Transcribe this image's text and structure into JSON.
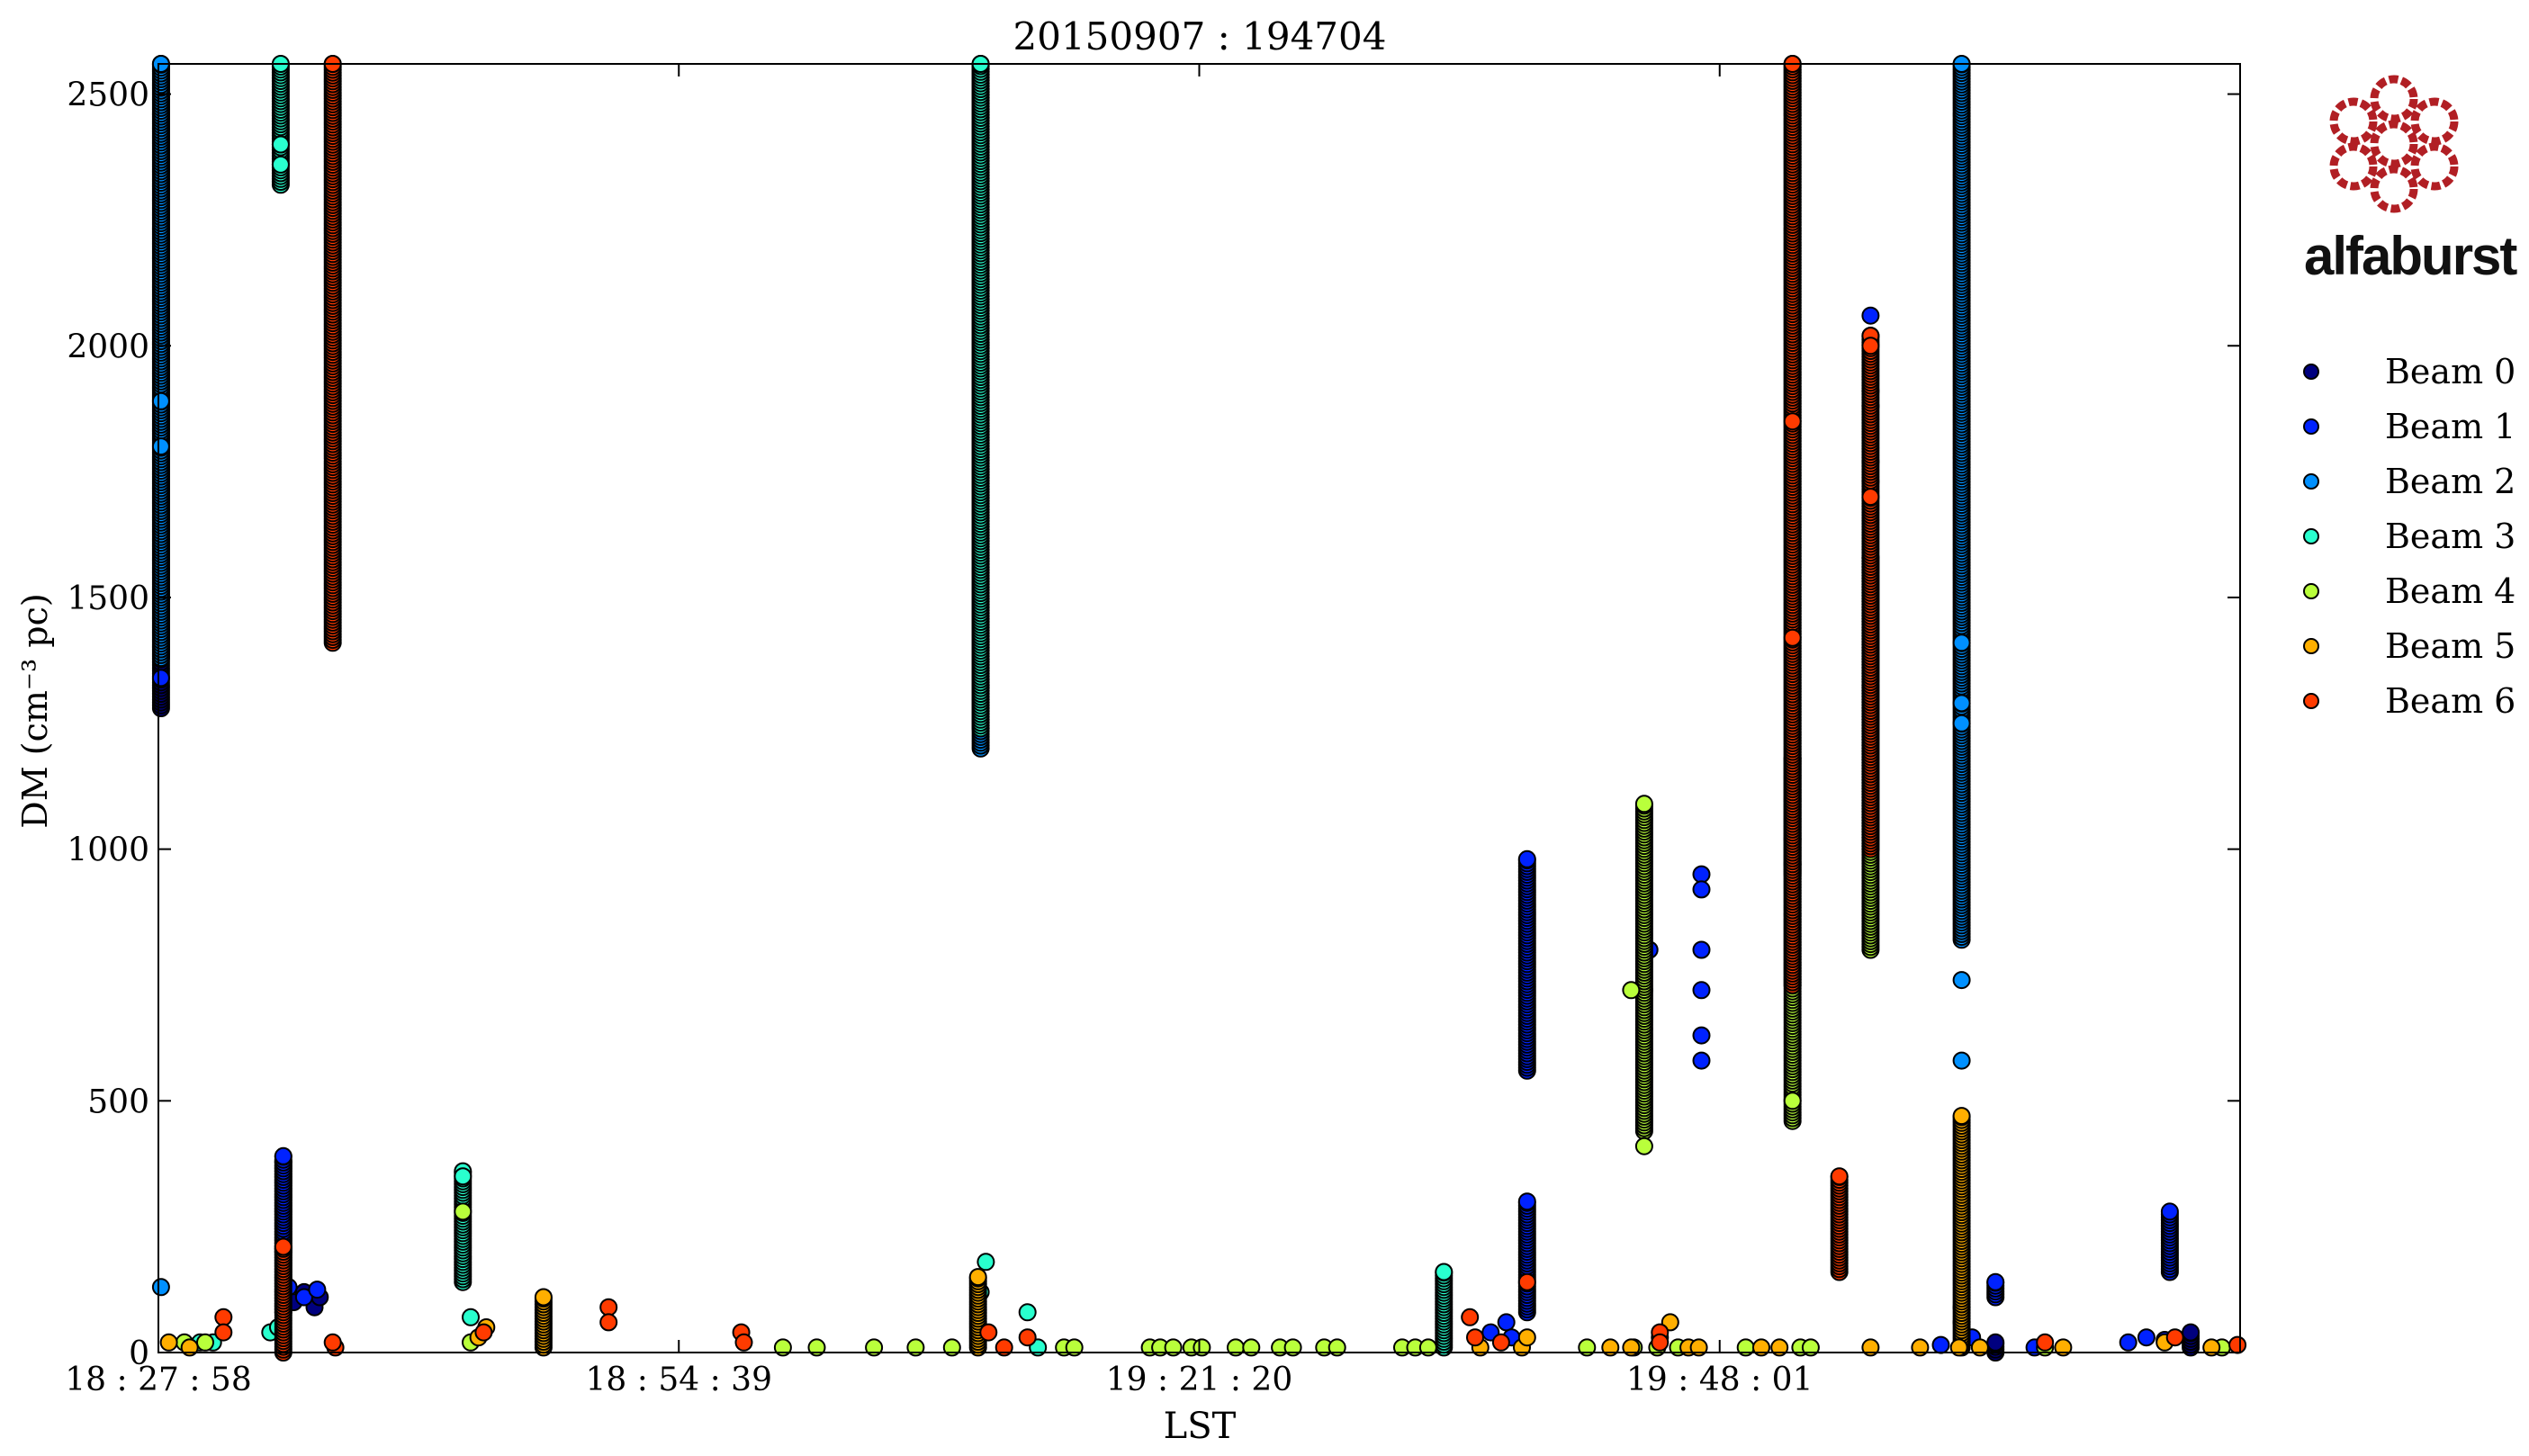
{
  "chart_data": {
    "type": "scatter",
    "title": "20150907 : 194704",
    "xlabel": "LST",
    "ylabel": "DM (cm⁻³ pc)",
    "xlim": [
      0,
      80
    ],
    "ylim": [
      0,
      2560
    ],
    "x_ticks": [
      {
        "value": 0,
        "label": "18 : 27 : 58"
      },
      {
        "value": 20,
        "label": "18 : 54 : 39"
      },
      {
        "value": 40,
        "label": "19 : 21 : 20"
      },
      {
        "value": 60,
        "label": "19 : 48 : 01"
      }
    ],
    "y_ticks": [
      0,
      500,
      1000,
      1500,
      2000,
      2500
    ],
    "grid": false,
    "legend_placement": "right",
    "series": [
      {
        "name": "Beam 0",
        "color": "#00007f",
        "columns": [
          [
            0.1,
            1280,
            2560
          ],
          [
            4.8,
            80,
            380
          ],
          [
            70.6,
            0,
            20
          ],
          [
            78.1,
            10,
            40
          ]
        ],
        "points": [
          [
            5.2,
            100
          ],
          [
            5.6,
            120
          ],
          [
            6.0,
            90
          ],
          [
            6.2,
            110
          ]
        ]
      },
      {
        "name": "Beam 1",
        "color": "#0022ff",
        "columns": [
          [
            4.8,
            200,
            390
          ],
          [
            52.6,
            560,
            980
          ],
          [
            52.6,
            80,
            300
          ],
          [
            70.6,
            110,
            140
          ],
          [
            77.3,
            160,
            280
          ],
          [
            62.8,
            950,
            1180
          ]
        ],
        "points": [
          [
            0.1,
            1340
          ],
          [
            5.0,
            130
          ],
          [
            5.6,
            110
          ],
          [
            6.1,
            125
          ],
          [
            51.8,
            60
          ],
          [
            52.0,
            30
          ],
          [
            57.1,
            720
          ],
          [
            57.3,
            800
          ],
          [
            59.3,
            580
          ],
          [
            59.3,
            630
          ],
          [
            59.3,
            720
          ],
          [
            59.3,
            800
          ],
          [
            59.3,
            950
          ],
          [
            59.3,
            920
          ],
          [
            62.8,
            970
          ],
          [
            62.8,
            1020
          ],
          [
            65.8,
            1730
          ],
          [
            65.8,
            2020
          ],
          [
            65.8,
            2060
          ],
          [
            72.1,
            10
          ],
          [
            75.7,
            20
          ],
          [
            76.4,
            30
          ],
          [
            77.1,
            25
          ],
          [
            69.7,
            30
          ],
          [
            68.5,
            15
          ],
          [
            51.2,
            40
          ]
        ]
      },
      {
        "name": "Beam 2",
        "color": "#0090ff",
        "columns": [
          [
            0.1,
            1380,
            2560
          ],
          [
            31.6,
            1200,
            2560
          ],
          [
            69.3,
            820,
            2560
          ]
        ],
        "points": [
          [
            0.1,
            1800
          ],
          [
            0.1,
            1890
          ],
          [
            0.1,
            130
          ],
          [
            69.3,
            580
          ],
          [
            69.3,
            740
          ],
          [
            69.3,
            1410
          ],
          [
            69.3,
            1250
          ],
          [
            69.3,
            1290
          ],
          [
            69.3,
            90
          ],
          [
            69.3,
            60
          ]
        ]
      },
      {
        "name": "Beam 3",
        "color": "#29ffce",
        "columns": [
          [
            4.7,
            2320,
            2560
          ],
          [
            11.7,
            140,
            360
          ],
          [
            31.6,
            1240,
            2560
          ],
          [
            49.4,
            10,
            160
          ]
        ],
        "points": [
          [
            4.3,
            40
          ],
          [
            4.6,
            50
          ],
          [
            4.7,
            2360
          ],
          [
            4.7,
            2400
          ],
          [
            11.7,
            350
          ],
          [
            12.0,
            70
          ],
          [
            31.6,
            120
          ],
          [
            31.8,
            180
          ],
          [
            33.4,
            80
          ],
          [
            33.8,
            10
          ],
          [
            2.1,
            20
          ],
          [
            1.6,
            20
          ]
        ]
      },
      {
        "name": "Beam 4",
        "color": "#b9ff3b",
        "columns": [
          [
            62.8,
            460,
            2560
          ],
          [
            57.1,
            440,
            1090
          ],
          [
            65.8,
            800,
            1580
          ]
        ],
        "points": [
          [
            57.1,
            410
          ],
          [
            56.6,
            720
          ],
          [
            56.7,
            10
          ],
          [
            65.8,
            1910
          ],
          [
            65.8,
            1770
          ],
          [
            65.8,
            1880
          ],
          [
            62.8,
            500
          ],
          [
            11.7,
            280
          ],
          [
            24.0,
            10
          ],
          [
            25.3,
            10
          ],
          [
            27.5,
            10
          ],
          [
            29.1,
            10
          ],
          [
            30.5,
            10
          ],
          [
            34.8,
            10
          ],
          [
            35.2,
            10
          ],
          [
            38.1,
            10
          ],
          [
            38.5,
            10
          ],
          [
            39.0,
            10
          ],
          [
            39.7,
            10
          ],
          [
            40.1,
            10
          ],
          [
            41.4,
            10
          ],
          [
            42.0,
            10
          ],
          [
            43.1,
            10
          ],
          [
            43.6,
            10
          ],
          [
            44.8,
            10
          ],
          [
            45.3,
            10
          ],
          [
            47.8,
            10
          ],
          [
            48.3,
            10
          ],
          [
            48.8,
            10
          ],
          [
            54.9,
            10
          ],
          [
            57.6,
            10
          ],
          [
            58.4,
            10
          ],
          [
            61.0,
            10
          ],
          [
            63.1,
            10
          ],
          [
            63.5,
            10
          ],
          [
            72.5,
            10
          ],
          [
            79.3,
            10
          ],
          [
            1.0,
            20
          ],
          [
            1.8,
            20
          ],
          [
            12.0,
            20
          ]
        ]
      },
      {
        "name": "Beam 5",
        "color": "#ffaf00",
        "columns": [
          [
            69.3,
            10,
            470
          ],
          [
            14.8,
            10,
            110
          ],
          [
            31.5,
            10,
            150
          ]
        ],
        "points": [
          [
            0.4,
            20
          ],
          [
            1.2,
            10
          ],
          [
            12.3,
            30
          ],
          [
            12.6,
            50
          ],
          [
            52.4,
            10
          ],
          [
            52.6,
            30
          ],
          [
            55.8,
            10
          ],
          [
            56.6,
            10
          ],
          [
            57.7,
            30
          ],
          [
            58.1,
            60
          ],
          [
            58.8,
            10
          ],
          [
            59.2,
            10
          ],
          [
            61.6,
            10
          ],
          [
            62.3,
            10
          ],
          [
            65.8,
            10
          ],
          [
            67.7,
            10
          ],
          [
            69.2,
            10
          ],
          [
            70.0,
            10
          ],
          [
            73.2,
            10
          ],
          [
            77.1,
            20
          ],
          [
            78.9,
            10
          ],
          [
            50.8,
            10
          ]
        ]
      },
      {
        "name": "Beam 6",
        "color": "#ff3b00",
        "columns": [
          [
            6.7,
            1410,
            2560
          ],
          [
            62.8,
            730,
            2560
          ],
          [
            65.8,
            1000,
            2020
          ],
          [
            64.6,
            160,
            350
          ],
          [
            4.8,
            0,
            210
          ]
        ],
        "points": [
          [
            6.8,
            10
          ],
          [
            6.7,
            20
          ],
          [
            2.5,
            70
          ],
          [
            2.5,
            40
          ],
          [
            12.5,
            40
          ],
          [
            17.3,
            90
          ],
          [
            17.3,
            60
          ],
          [
            22.4,
            40
          ],
          [
            22.5,
            20
          ],
          [
            31.9,
            40
          ],
          [
            32.5,
            10
          ],
          [
            33.4,
            30
          ],
          [
            50.4,
            70
          ],
          [
            50.6,
            30
          ],
          [
            51.6,
            20
          ],
          [
            52.6,
            140
          ],
          [
            57.7,
            40
          ],
          [
            57.7,
            20
          ],
          [
            62.8,
            1420
          ],
          [
            62.8,
            1850
          ],
          [
            65.8,
            1700
          ],
          [
            65.8,
            2000
          ],
          [
            72.5,
            20
          ],
          [
            77.5,
            30
          ],
          [
            79.9,
            15
          ]
        ]
      }
    ]
  },
  "logo": {
    "text": "alfaburst",
    "color": "#b11f24"
  }
}
